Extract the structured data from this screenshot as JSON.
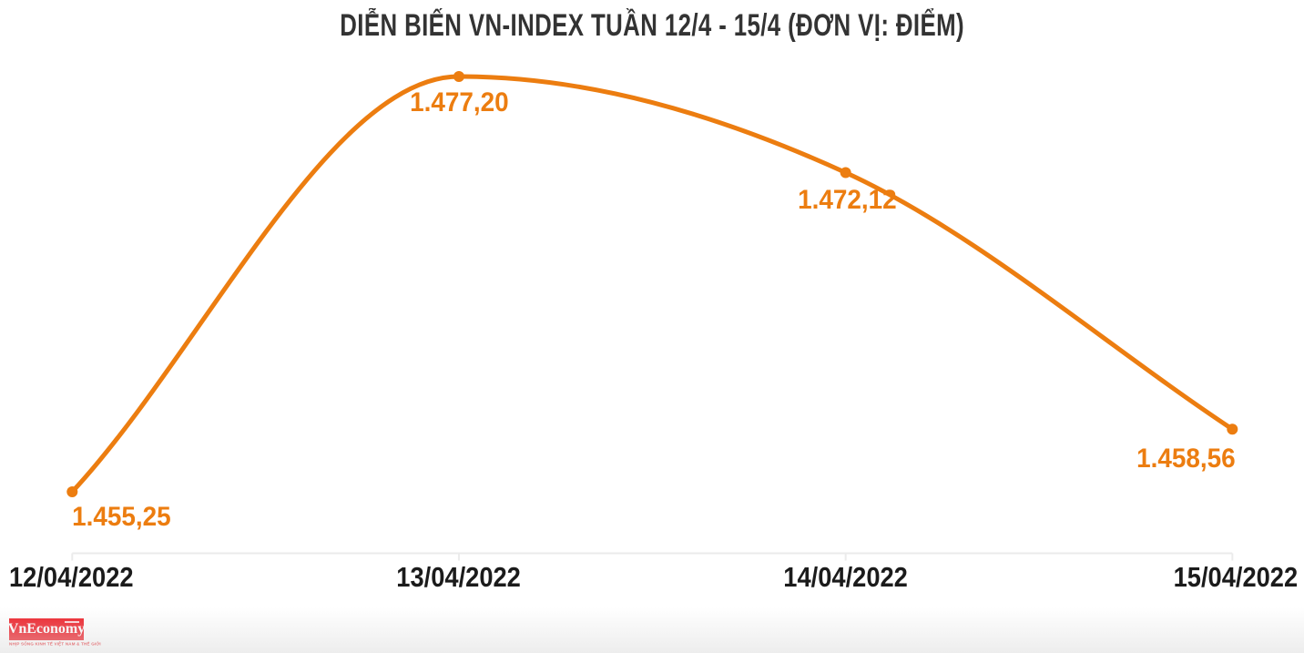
{
  "title": "DIỄN BIẾN VN-INDEX TUẦN 12/4 - 15/4 (ĐƠN VỊ: ĐIỂM)",
  "chart_data": {
    "type": "line",
    "title": "DIỄN BIẾN VN-INDEX TUẦN 12/4 - 15/4",
    "unit_label": "ĐIỂM",
    "categories": [
      "12/04/2022",
      "13/04/2022",
      "14/04/2022",
      "15/04/2022"
    ],
    "series": [
      {
        "name": "VN-INDEX",
        "values": [
          1455.25,
          1477.2,
          1472.12,
          1458.56
        ]
      }
    ],
    "point_labels": [
      "1.455,25",
      "1.477,20",
      "1.472,12",
      "1.458,56"
    ],
    "ylim": [
      1451,
      1481
    ],
    "grid": false,
    "legend": false,
    "smooth": true,
    "marker": "circle",
    "line_color": "#EC7D10",
    "label_color": "#EC7D10",
    "axis_color": "#ebebeb"
  },
  "branding": {
    "logo_text": "VnEconomy",
    "tagline": "NHỊP SỐNG KINH TẾ VIỆT NAM & THẾ GIỚI",
    "logo_bg": "#EE1C25",
    "tagline_color": "#E8262D"
  }
}
